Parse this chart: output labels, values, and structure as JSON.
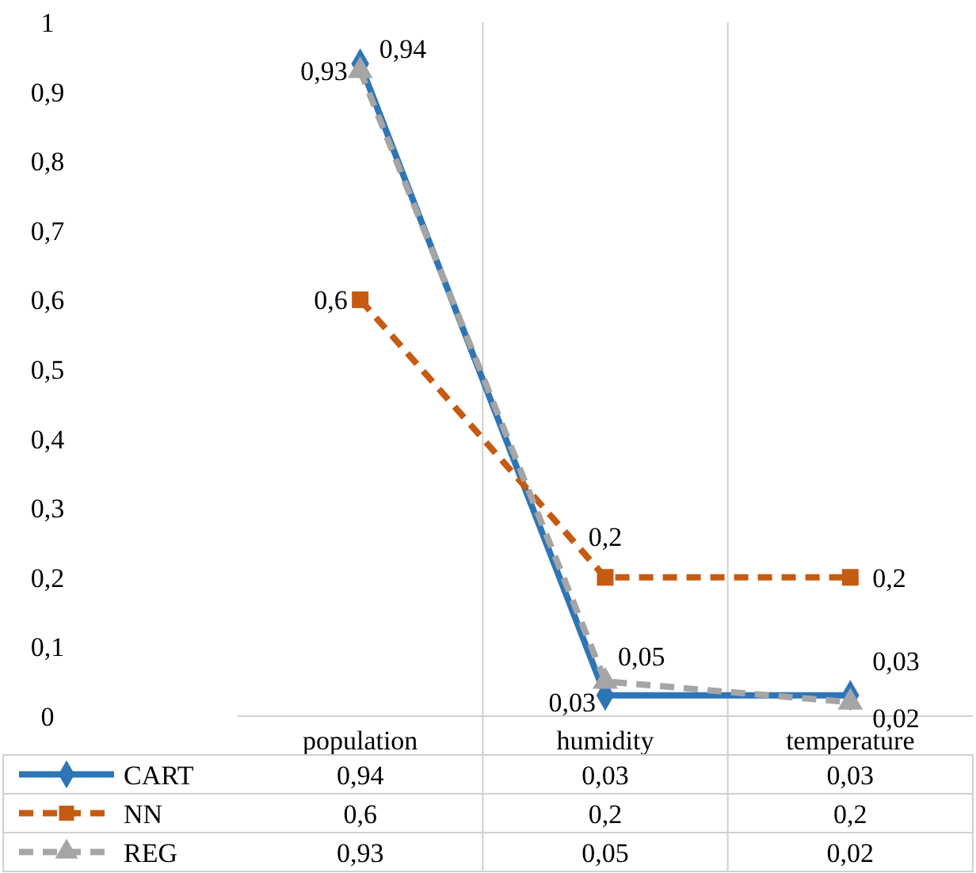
{
  "chart_data": {
    "type": "line",
    "categories": [
      "population",
      "humidity",
      "temperature"
    ],
    "series": [
      {
        "name": "CART",
        "color": "#2e75b6",
        "values": [
          0.94,
          0.03,
          0.03
        ],
        "value_labels": [
          "0,94",
          "0,03",
          "0,03"
        ],
        "marker": "diamond",
        "line_style": "solid"
      },
      {
        "name": "NN",
        "color": "#c55a11",
        "values": [
          0.6,
          0.2,
          0.2
        ],
        "value_labels": [
          "0,6",
          "0,2",
          "0,2"
        ],
        "marker": "square",
        "line_style": "dashed"
      },
      {
        "name": "REG",
        "color": "#a5a5a5",
        "values": [
          0.93,
          0.05,
          0.02
        ],
        "value_labels": [
          "0,93",
          "0,05",
          "0,02"
        ],
        "marker": "triangle",
        "line_style": "dashed"
      }
    ],
    "ylim": [
      0,
      1
    ],
    "yticks": [
      0,
      {
        "value": 0.1,
        "label": "0,1"
      },
      {
        "value": 0.2,
        "label": "0,2"
      },
      {
        "value": 0.3,
        "label": "0,3"
      },
      {
        "value": 0.4,
        "label": "0,4"
      },
      {
        "value": 0.5,
        "label": "0,5"
      },
      {
        "value": 0.6,
        "label": "0,6"
      },
      {
        "value": 0.7,
        "label": "0,7"
      },
      {
        "value": 0.8,
        "label": "0,8"
      },
      {
        "value": 0.9,
        "label": "0,9"
      },
      1
    ],
    "grid": "x",
    "legend": "bottom"
  }
}
